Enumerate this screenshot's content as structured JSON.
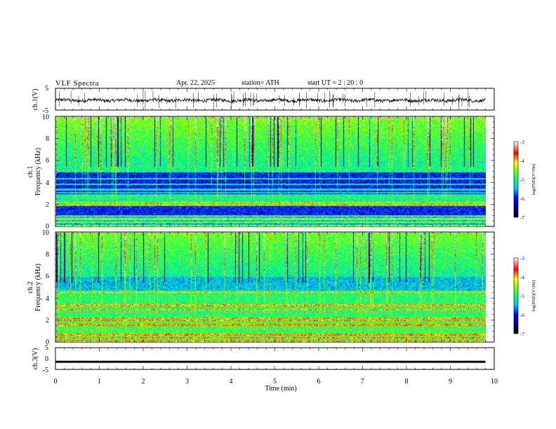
{
  "header": {
    "title": "VLF  Spectra",
    "date": "Apr. 22, 2025",
    "station": "station= ATH",
    "start": "start  UT  =   2  : 20 : 0"
  },
  "chart_data": [
    {
      "type": "line",
      "panel": "ch1-waveform",
      "ylabel": "ch.1(V)",
      "ylim": [
        -5,
        5
      ],
      "yticks": [
        "5",
        "-5"
      ],
      "xlim": [
        0,
        10
      ],
      "grid": false,
      "description_values": {
        "baseline": -0.5,
        "noise_amplitude": 1.5
      }
    },
    {
      "type": "heatmap",
      "panel": "ch1-spectrogram",
      "ylabel": "ch.1\nFrequency  (kHz)",
      "ylim": [
        0,
        10
      ],
      "yticks": [
        "0",
        "2",
        "4",
        "6",
        "8",
        "10"
      ],
      "xlim": [
        0,
        10
      ],
      "colorbar": {
        "label": "log(PSD)(V²/Hz)",
        "range": [
          -7,
          -3
        ],
        "ticks": [
          "-3",
          "-4",
          "-5",
          "-6",
          "-7"
        ]
      }
    },
    {
      "type": "heatmap",
      "panel": "ch2-spectrogram",
      "ylabel": "ch.2\nFrequency  (kHz)",
      "ylim": [
        0,
        10
      ],
      "yticks": [
        "0",
        "2",
        "4",
        "6",
        "8",
        "10"
      ],
      "xlim": [
        0,
        10
      ],
      "colorbar": {
        "label": "log(PSD)(V²/Hz)",
        "range": [
          -7,
          -3
        ],
        "ticks": [
          "-3",
          "-4",
          "-5",
          "-6",
          "-7"
        ]
      }
    },
    {
      "type": "line",
      "panel": "ch3-waveform",
      "ylabel": "ch.3(V)",
      "ylim": [
        -5,
        5
      ],
      "yticks": [
        "5",
        "0",
        "-5"
      ],
      "xlim": [
        0,
        10
      ],
      "baseline": -1.5
    }
  ],
  "xaxis": {
    "label": "Time  (min)",
    "ticks": [
      "0",
      "1",
      "2",
      "3",
      "4",
      "5",
      "6",
      "7",
      "8",
      "9",
      "10"
    ],
    "data_end": 9.8
  },
  "colors": {
    "ink": "#000000",
    "background": "#ffffff"
  }
}
